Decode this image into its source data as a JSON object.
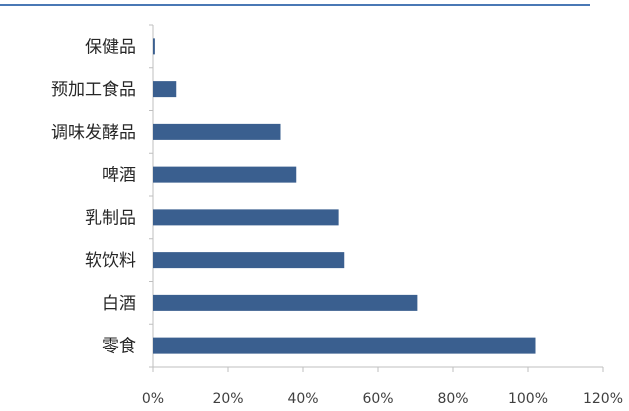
{
  "chart_data": {
    "type": "bar",
    "orientation": "horizontal",
    "categories": [
      "保健品",
      "预加工食品",
      "调味发酵品",
      "啤酒",
      "乳制品",
      "软饮料",
      "白酒",
      "零食"
    ],
    "values": [
      0.5,
      6.2,
      34,
      38.2,
      49.5,
      51,
      70.5,
      102
    ],
    "value_unit": "%",
    "xlim": [
      0,
      120
    ],
    "xticks": [
      0,
      20,
      40,
      60,
      80,
      100,
      120
    ],
    "xtick_labels": [
      "0%",
      "20%",
      "40%",
      "60%",
      "80%",
      "100%",
      "120%"
    ],
    "bar_color": "#3a5f8f",
    "axis_color": "#bfbfbf",
    "grid": false,
    "title": "",
    "xlabel": "",
    "ylabel": ""
  }
}
